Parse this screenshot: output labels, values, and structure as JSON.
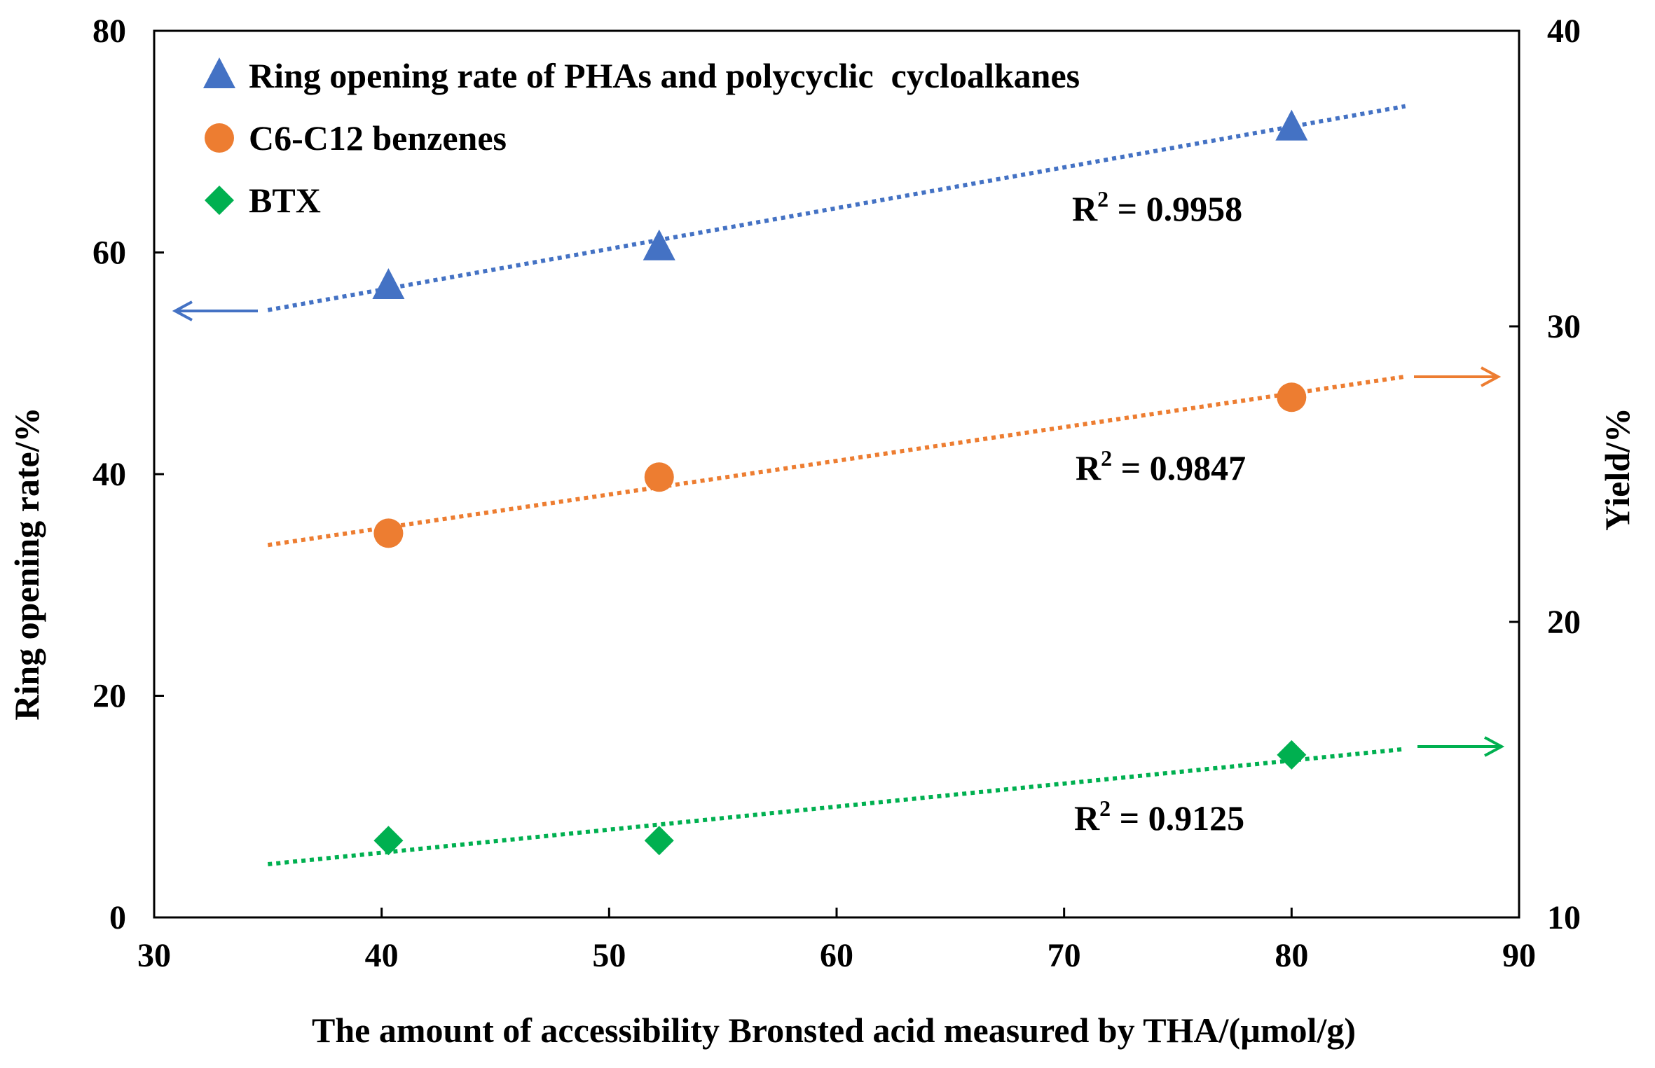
{
  "chart_data": {
    "type": "scatter",
    "xlabel": "The amount of accessibility Bronsted acid measured by THA/(µmol/g)",
    "ylabel_left": "Ring opening rate/%",
    "ylabel_right": "Yield/%",
    "xlim": [
      30,
      90
    ],
    "ylim_left": [
      0,
      80
    ],
    "ylim_right": [
      10,
      40
    ],
    "xticks": [
      "30",
      "40",
      "50",
      "60",
      "70",
      "80",
      "90"
    ],
    "yticks_left": [
      "0",
      "20",
      "40",
      "60",
      "80"
    ],
    "yticks_right": [
      "10",
      "20",
      "30",
      "40"
    ],
    "legend_position": "top-left",
    "grid": false,
    "series": [
      {
        "name": "Ring opening rate of PHAs and polycyclic  cycloalkanes",
        "axis": "left",
        "marker": "triangle",
        "color": "#4472C4",
        "x": [
          40.3,
          52.2,
          80.0
        ],
        "y": [
          57.0,
          60.5,
          71.3
        ],
        "trendline_x": [
          35,
          85
        ],
        "trendline_y": [
          54.8,
          73.2
        ],
        "r2_label": "R",
        "r2_sup": "2",
        "r2_value": " = 0.9958",
        "arrow_direction": "left"
      },
      {
        "name": "C6-C12 benzenes",
        "axis": "right",
        "marker": "circle",
        "color": "#ED7D31",
        "x": [
          40.3,
          52.2,
          80.0
        ],
        "y": [
          23.0,
          24.9,
          27.6
        ],
        "trendline_x": [
          35,
          85
        ],
        "trendline_y": [
          22.6,
          28.3
        ],
        "r2_label": "R",
        "r2_sup": "2",
        "r2_value": " = 0.9847",
        "arrow_direction": "right"
      },
      {
        "name": "BTX",
        "axis": "right",
        "marker": "diamond",
        "color": "#00B050",
        "x": [
          40.3,
          52.2,
          80.0
        ],
        "y": [
          12.6,
          12.6,
          15.5
        ],
        "trendline_x": [
          35,
          85
        ],
        "trendline_y": [
          11.8,
          15.7
        ],
        "r2_label": "R",
        "r2_sup": "2",
        "r2_value": " = 0.9125",
        "arrow_direction": "right"
      }
    ]
  }
}
